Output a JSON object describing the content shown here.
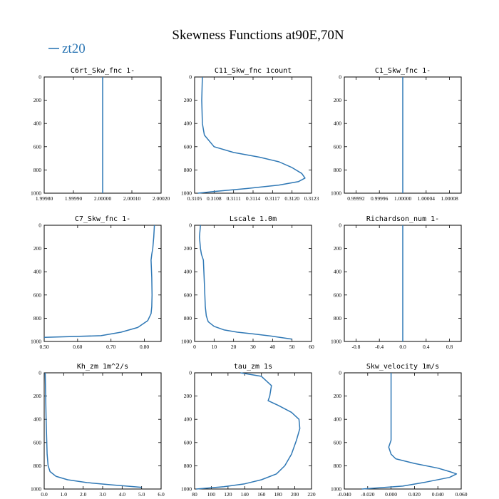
{
  "figure": {
    "title": "Skewness Functions at90E,70N",
    "legend": [
      {
        "name": "zt20",
        "color": "#2f78b5"
      }
    ]
  },
  "chart_data": [
    {
      "type": "line",
      "title": "C6rt_Skw_fnc   1-",
      "xlim": [
        1.9998,
        2.0002
      ],
      "ylim": [
        0,
        1000
      ],
      "y_inverted": true,
      "xticks": [
        "1.99980",
        "1.99990",
        "2.00000",
        "2.00010",
        "2.00020"
      ],
      "yticks": [
        "0",
        "200",
        "400",
        "600",
        "800",
        "1000"
      ],
      "series": [
        {
          "name": "zt20",
          "x": [
            2.0,
            2.0
          ],
          "y": [
            0,
            1000
          ]
        }
      ]
    },
    {
      "type": "line",
      "title": "C11_Skw_fnc   1count",
      "xlim": [
        0.3105,
        0.3123
      ],
      "ylim": [
        0,
        1000
      ],
      "y_inverted": true,
      "xticks": [
        "0.3105",
        "0.3108",
        "0.3111",
        "0.3114",
        "0.3117",
        "0.3120",
        "0.3123"
      ],
      "yticks": [
        "0",
        "200",
        "400",
        "600",
        "800",
        "1000"
      ],
      "series": [
        {
          "name": "zt20",
          "x": [
            0.31062,
            0.31061,
            0.31062,
            0.31065,
            0.3108,
            0.3111,
            0.3115,
            0.3118,
            0.312,
            0.31215,
            0.3122,
            0.3121,
            0.3118,
            0.3113,
            0.3108,
            0.31055
          ],
          "y": [
            0,
            200,
            400,
            500,
            600,
            650,
            690,
            730,
            780,
            830,
            870,
            900,
            930,
            960,
            985,
            1000
          ]
        }
      ]
    },
    {
      "type": "line",
      "title": "C1_Skw_fnc   1-",
      "xlim": [
        0.9999,
        1.0001
      ],
      "ylim": [
        0,
        1000
      ],
      "y_inverted": true,
      "xticks": [
        "0.99992",
        "0.99996",
        "1.00000",
        "1.00004",
        "1.00008"
      ],
      "yticks": [
        "0",
        "200",
        "400",
        "600",
        "800",
        "1000"
      ],
      "series": [
        {
          "name": "zt20",
          "x": [
            1.0,
            1.0
          ],
          "y": [
            0,
            1000
          ]
        }
      ]
    },
    {
      "type": "line",
      "title": "C7_Skw_fnc   1-",
      "xlim": [
        0.5,
        0.85
      ],
      "ylim": [
        0,
        1000
      ],
      "y_inverted": true,
      "xticks": [
        "0.50",
        "0.60",
        "0.70",
        "0.80"
      ],
      "yticks": [
        "0",
        "200",
        "400",
        "600",
        "800",
        "1000"
      ],
      "series": [
        {
          "name": "zt20",
          "x": [
            0.83,
            0.828,
            0.825,
            0.822,
            0.82,
            0.822,
            0.823,
            0.822,
            0.82,
            0.81,
            0.78,
            0.73,
            0.67,
            0.5
          ],
          "y": [
            0,
            100,
            200,
            250,
            300,
            450,
            600,
            700,
            760,
            820,
            880,
            920,
            950,
            965
          ]
        }
      ]
    },
    {
      "type": "line",
      "title": "Lscale   1.0m",
      "xlim": [
        0,
        60
      ],
      "ylim": [
        0,
        1000
      ],
      "y_inverted": true,
      "xticks": [
        "0",
        "10",
        "20",
        "30",
        "40",
        "50",
        "60"
      ],
      "yticks": [
        "0",
        "200",
        "400",
        "600",
        "800",
        "1000"
      ],
      "series": [
        {
          "name": "zt20",
          "x": [
            3,
            2.5,
            3,
            3.5,
            4.5,
            5,
            5.5,
            6,
            7,
            10,
            15,
            22,
            30,
            40,
            50
          ],
          "y": [
            0,
            100,
            200,
            250,
            300,
            500,
            700,
            780,
            830,
            870,
            900,
            920,
            935,
            955,
            980
          ]
        }
      ]
    },
    {
      "type": "line",
      "title": "Richardson_num   1-",
      "xlim": [
        -1,
        1
      ],
      "ylim": [
        0,
        1000
      ],
      "y_inverted": true,
      "xticks": [
        "-0.8",
        "-0.4",
        "0.0",
        "0.4",
        "0.8"
      ],
      "yticks": [
        "0",
        "200",
        "400",
        "600",
        "800",
        "1000"
      ],
      "series": [
        {
          "name": "zt20",
          "x": [
            0,
            0
          ],
          "y": [
            0,
            1000
          ]
        }
      ]
    },
    {
      "type": "line",
      "title": "Kh_zm   1m^2/s",
      "xlim": [
        0,
        6
      ],
      "ylim": [
        0,
        1000
      ],
      "y_inverted": true,
      "xticks": [
        "0.0",
        "1.0",
        "2.0",
        "3.0",
        "4.0",
        "5.0",
        "6.0"
      ],
      "yticks": [
        "0",
        "200",
        "400",
        "600",
        "800",
        "1000"
      ],
      "series": [
        {
          "name": "zt20",
          "x": [
            0.05,
            0.1,
            0.15,
            0.2,
            0.3,
            0.6,
            1.2,
            2.2,
            3.5,
            5.0
          ],
          "y": [
            0,
            400,
            700,
            800,
            850,
            890,
            920,
            945,
            965,
            985
          ]
        }
      ]
    },
    {
      "type": "line",
      "title": "tau_zm   1s",
      "xlim": [
        80,
        220
      ],
      "ylim": [
        0,
        1000
      ],
      "y_inverted": true,
      "xticks": [
        "80",
        "100",
        "120",
        "140",
        "160",
        "180",
        "200",
        "220"
      ],
      "yticks": [
        "0",
        "200",
        "400",
        "600",
        "800",
        "1000"
      ],
      "series": [
        {
          "name": "zt20",
          "x": [
            135,
            160,
            172,
            170,
            168,
            180,
            196,
            205,
            206,
            202,
            196,
            188,
            178,
            160,
            140,
            115,
            82
          ],
          "y": [
            0,
            30,
            110,
            200,
            240,
            280,
            340,
            400,
            480,
            580,
            700,
            800,
            870,
            920,
            955,
            980,
            1000
          ]
        }
      ]
    },
    {
      "type": "line",
      "title": "Skw_velocity   1m/s",
      "xlim": [
        -0.04,
        0.06
      ],
      "ylim": [
        0,
        1000
      ],
      "y_inverted": true,
      "xticks": [
        "-0.040",
        "-0.020",
        "0.000",
        "0.020",
        "0.040",
        "0.060"
      ],
      "yticks": [
        "0",
        "200",
        "400",
        "600",
        "800",
        "1000"
      ],
      "series": [
        {
          "name": "zt20",
          "x": [
            0.0,
            0.0,
            0.0,
            0.0,
            -0.002,
            0.0,
            0.004,
            0.02,
            0.04,
            0.05,
            0.056,
            0.05,
            0.03,
            0.01,
            -0.025
          ],
          "y": [
            0,
            200,
            400,
            580,
            640,
            700,
            740,
            780,
            820,
            850,
            870,
            900,
            940,
            975,
            1000
          ]
        }
      ]
    }
  ]
}
